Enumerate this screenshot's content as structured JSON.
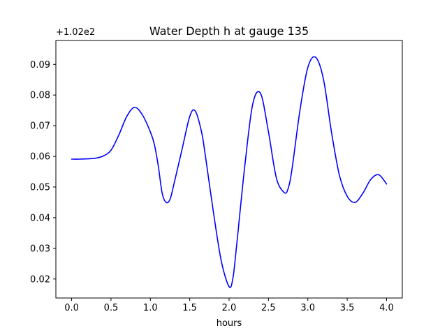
{
  "chart_data": {
    "type": "line",
    "title": "Water Depth h at gauge 135",
    "xlabel": "hours",
    "ylabel": "",
    "y_offset_label": "+1.02e2",
    "xlim": [
      -0.2,
      4.2
    ],
    "ylim": [
      0.0138,
      0.0978
    ],
    "xticks": [
      0.0,
      0.5,
      1.0,
      1.5,
      2.0,
      2.5,
      3.0,
      3.5,
      4.0
    ],
    "xtick_labels": [
      "0.0",
      "0.5",
      "1.0",
      "1.5",
      "2.0",
      "2.5",
      "3.0",
      "3.5",
      "4.0"
    ],
    "yticks": [
      0.02,
      0.03,
      0.04,
      0.05,
      0.06,
      0.07,
      0.08,
      0.09
    ],
    "ytick_labels": [
      "0.02",
      "0.03",
      "0.04",
      "0.05",
      "0.06",
      "0.07",
      "0.08",
      "0.09"
    ],
    "grid": false,
    "series": [
      {
        "color": "#0000ff",
        "x": [
          0.0,
          0.1,
          0.2,
          0.3,
          0.4,
          0.5,
          0.6,
          0.7,
          0.8,
          0.9,
          1.0,
          1.05,
          1.1,
          1.15,
          1.2,
          1.25,
          1.3,
          1.4,
          1.5,
          1.57,
          1.65,
          1.7,
          1.8,
          1.9,
          2.0,
          2.05,
          2.1,
          2.2,
          2.3,
          2.4,
          2.5,
          2.6,
          2.7,
          2.75,
          2.8,
          2.9,
          3.0,
          3.1,
          3.2,
          3.3,
          3.4,
          3.5,
          3.6,
          3.7,
          3.8,
          3.9,
          4.0
        ],
        "y": [
          0.0591,
          0.0591,
          0.0592,
          0.0594,
          0.0601,
          0.062,
          0.067,
          0.073,
          0.076,
          0.0735,
          0.068,
          0.064,
          0.057,
          0.048,
          0.045,
          0.046,
          0.051,
          0.062,
          0.073,
          0.0748,
          0.068,
          0.06,
          0.042,
          0.026,
          0.0175,
          0.0205,
          0.032,
          0.057,
          0.077,
          0.0805,
          0.068,
          0.053,
          0.0482,
          0.0495,
          0.056,
          0.075,
          0.089,
          0.0923,
          0.085,
          0.068,
          0.054,
          0.047,
          0.045,
          0.048,
          0.0525,
          0.054,
          0.051
        ]
      }
    ]
  }
}
